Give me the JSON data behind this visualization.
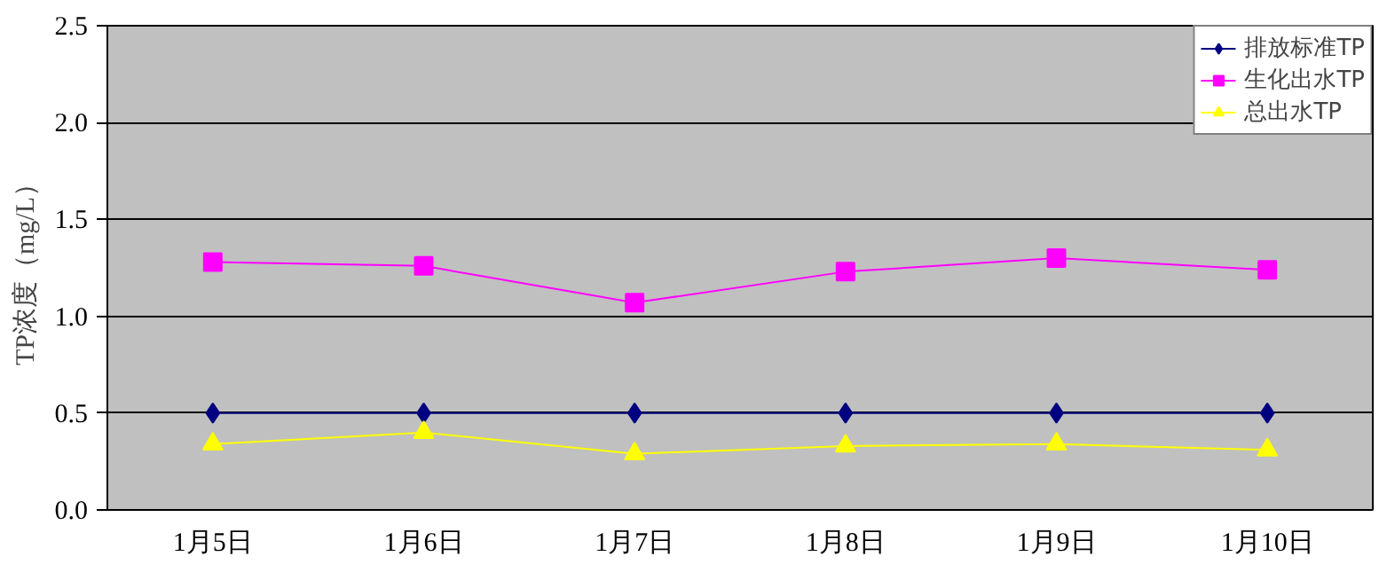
{
  "chart_data": {
    "type": "line",
    "ylabel": "TP浓度（mg/L）",
    "categories": [
      "1月5日",
      "1月6日",
      "1月7日",
      "1月8日",
      "1月9日",
      "1月10日"
    ],
    "series": [
      {
        "name": "排放标准TP",
        "color": "#000080",
        "marker": "diamond",
        "values": [
          0.5,
          0.5,
          0.5,
          0.5,
          0.5,
          0.5
        ]
      },
      {
        "name": "生化出水TP",
        "color": "#ff00ff",
        "marker": "square",
        "values": [
          1.28,
          1.26,
          1.07,
          1.23,
          1.3,
          1.24
        ]
      },
      {
        "name": "总出水TP",
        "color": "#ffff00",
        "marker": "triangle",
        "values": [
          0.34,
          0.4,
          0.29,
          0.33,
          0.34,
          0.31
        ]
      }
    ],
    "ylim": [
      0,
      2.5
    ],
    "yticks": [
      {
        "value": 0,
        "label": "0.0"
      },
      {
        "value": 0.5,
        "label": "0.5"
      },
      {
        "value": 1,
        "label": "1.0"
      },
      {
        "value": 1.5,
        "label": "1.5"
      },
      {
        "value": 2,
        "label": "2.0"
      },
      {
        "value": 2.5,
        "label": "2.5"
      }
    ],
    "grid": "y",
    "legend": "top right",
    "line_style": "solid"
  }
}
